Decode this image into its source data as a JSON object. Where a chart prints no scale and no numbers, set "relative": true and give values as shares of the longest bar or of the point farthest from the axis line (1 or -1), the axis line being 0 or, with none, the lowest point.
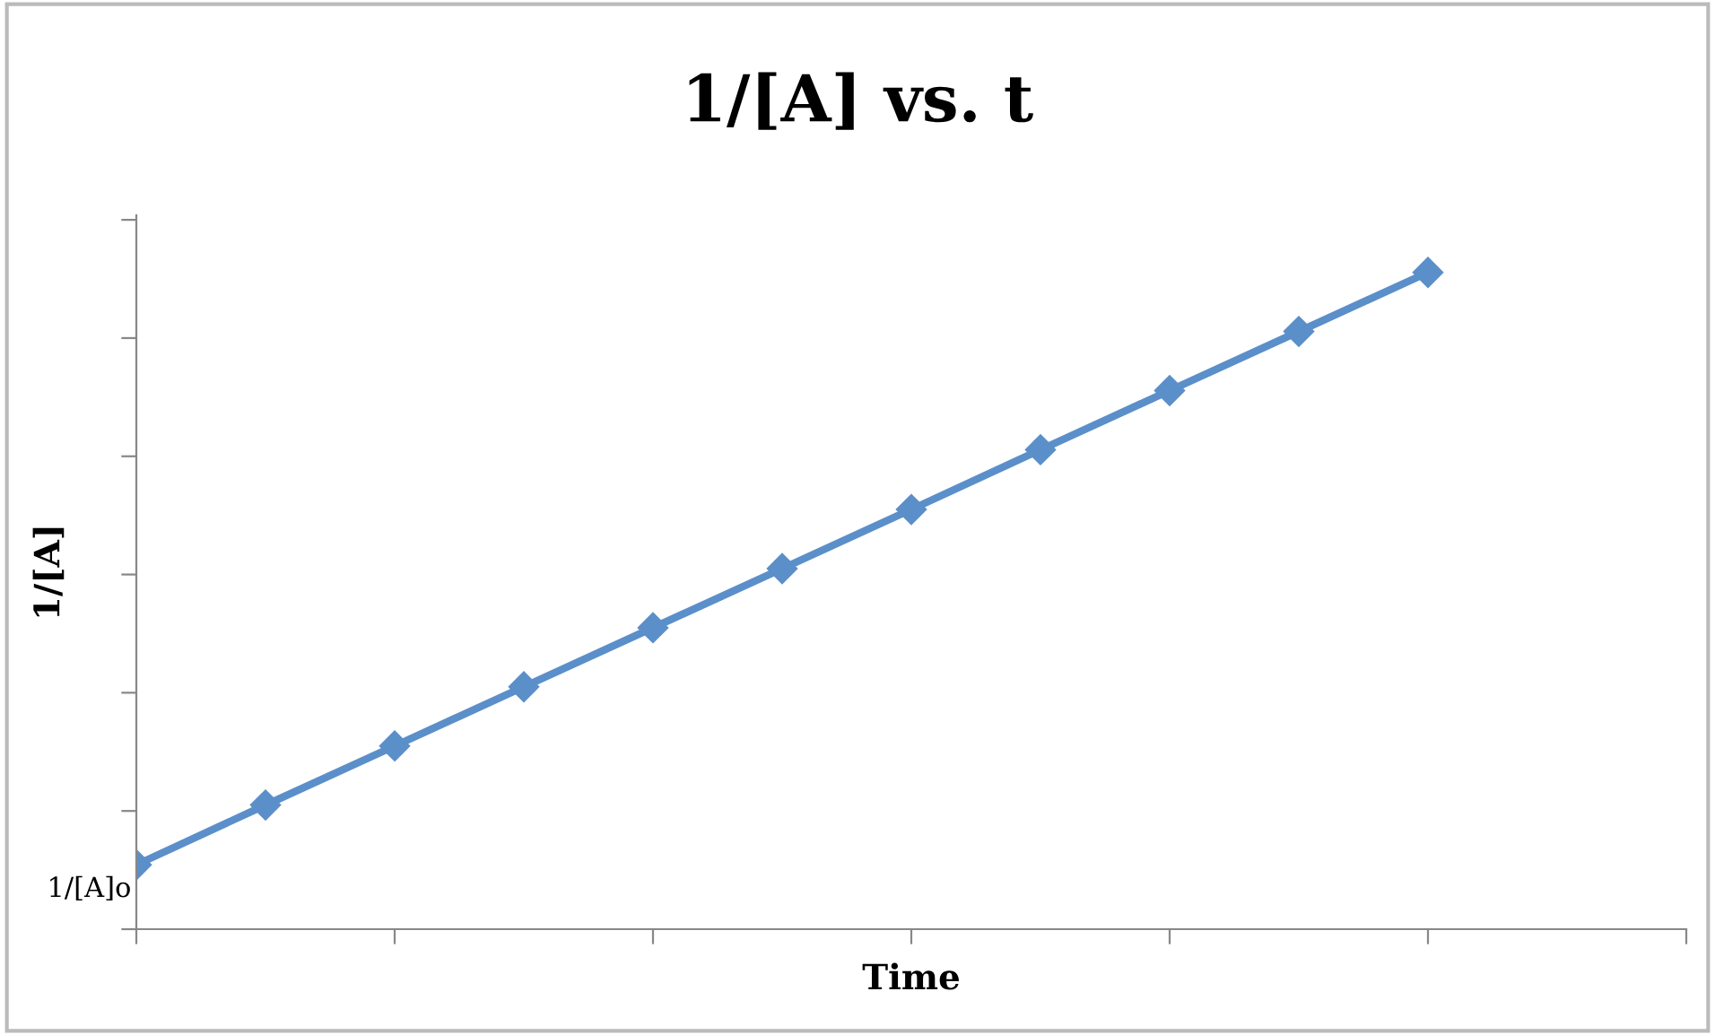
{
  "chart_data": {
    "type": "line",
    "title": "1/[A] vs. t",
    "xlabel": "Time",
    "ylabel": "1/[A]",
    "categories": [
      null,
      null,
      null,
      null,
      null,
      null,
      null,
      null,
      null,
      null,
      null,
      null,
      null
    ],
    "series": [
      {
        "color": "#5b8fc9",
        "values": [
          0.098,
          0.189,
          0.279,
          0.369,
          0.459,
          0.549,
          0.639,
          0.73,
          0.82,
          0.91,
          1.0,
          null,
          null
        ]
      }
    ],
    "relative": true,
    "marker": "diamond",
    "line_style": "solid",
    "grid": false,
    "legend": false,
    "annotations": [
      "1/[A]o"
    ]
  }
}
